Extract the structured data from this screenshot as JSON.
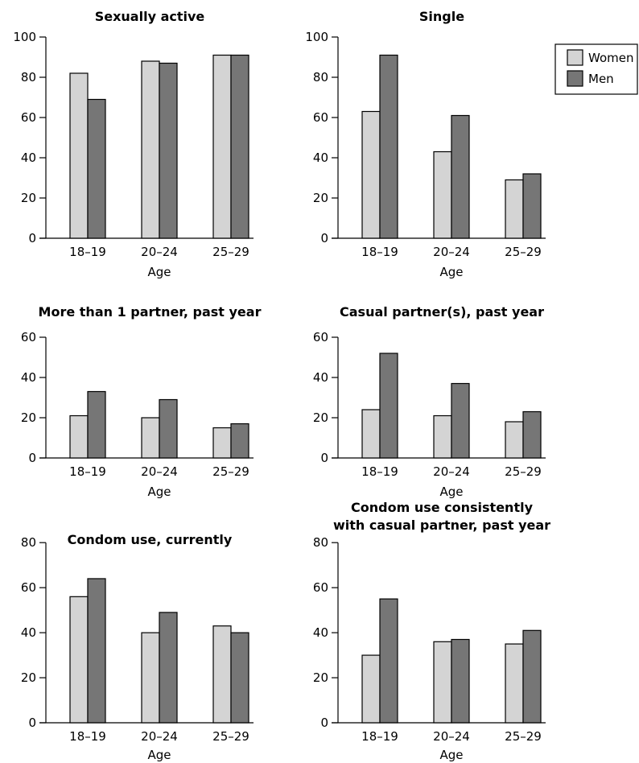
{
  "legend": {
    "entries": [
      {
        "name": "Women",
        "color": "#d4d4d4"
      },
      {
        "name": "Men",
        "color": "#767676"
      }
    ]
  },
  "chart_data": [
    {
      "type": "bar",
      "title": "Sexually active",
      "xlabel": "Age",
      "ylabel": "",
      "categories": [
        "18–19",
        "20–24",
        "25–29"
      ],
      "ylim": [
        0,
        100
      ],
      "yticks": [
        0,
        20,
        40,
        60,
        80,
        100
      ],
      "series": [
        {
          "name": "Women",
          "values": [
            82,
            88,
            91
          ]
        },
        {
          "name": "Men",
          "values": [
            69,
            87,
            91
          ]
        }
      ]
    },
    {
      "type": "bar",
      "title": "Single",
      "xlabel": "Age",
      "ylabel": "",
      "categories": [
        "18–19",
        "20–24",
        "25–29"
      ],
      "ylim": [
        0,
        100
      ],
      "yticks": [
        0,
        20,
        40,
        60,
        80,
        100
      ],
      "series": [
        {
          "name": "Women",
          "values": [
            63,
            43,
            29
          ]
        },
        {
          "name": "Men",
          "values": [
            91,
            61,
            32
          ]
        }
      ]
    },
    {
      "type": "bar",
      "title": "More than 1 partner, past year",
      "xlabel": "Age",
      "ylabel": "",
      "categories": [
        "18–19",
        "20–24",
        "25–29"
      ],
      "ylim": [
        0,
        66
      ],
      "yticks": [
        0,
        20,
        40,
        60
      ],
      "series": [
        {
          "name": "Women",
          "values": [
            21,
            20,
            15
          ]
        },
        {
          "name": "Men",
          "values": [
            33,
            29,
            17
          ]
        }
      ]
    },
    {
      "type": "bar",
      "title": "Casual partner(s), past year",
      "xlabel": "Age",
      "ylabel": "",
      "categories": [
        "18–19",
        "20–24",
        "25–29"
      ],
      "ylim": [
        0,
        66
      ],
      "yticks": [
        0,
        20,
        40,
        60
      ],
      "series": [
        {
          "name": "Women",
          "values": [
            24,
            21,
            18
          ]
        },
        {
          "name": "Men",
          "values": [
            52,
            37,
            23
          ]
        }
      ]
    },
    {
      "type": "bar",
      "title": "Condom use, currently",
      "xlabel": "Age",
      "ylabel": "",
      "categories": [
        "18–19",
        "20–24",
        "25–29"
      ],
      "ylim": [
        0,
        84
      ],
      "yticks": [
        0,
        20,
        40,
        60,
        80
      ],
      "series": [
        {
          "name": "Women",
          "values": [
            56,
            40,
            43
          ]
        },
        {
          "name": "Men",
          "values": [
            64,
            49,
            40
          ]
        }
      ]
    },
    {
      "type": "bar",
      "title": [
        "Condom use consistently",
        "with casual partner, past year"
      ],
      "xlabel": "Age",
      "ylabel": "",
      "categories": [
        "18–19",
        "20–24",
        "25–29"
      ],
      "ylim": [
        0,
        84
      ],
      "yticks": [
        0,
        20,
        40,
        60,
        80
      ],
      "series": [
        {
          "name": "Women",
          "values": [
            30,
            36,
            35
          ]
        },
        {
          "name": "Men",
          "values": [
            55,
            37,
            41
          ]
        }
      ]
    }
  ]
}
